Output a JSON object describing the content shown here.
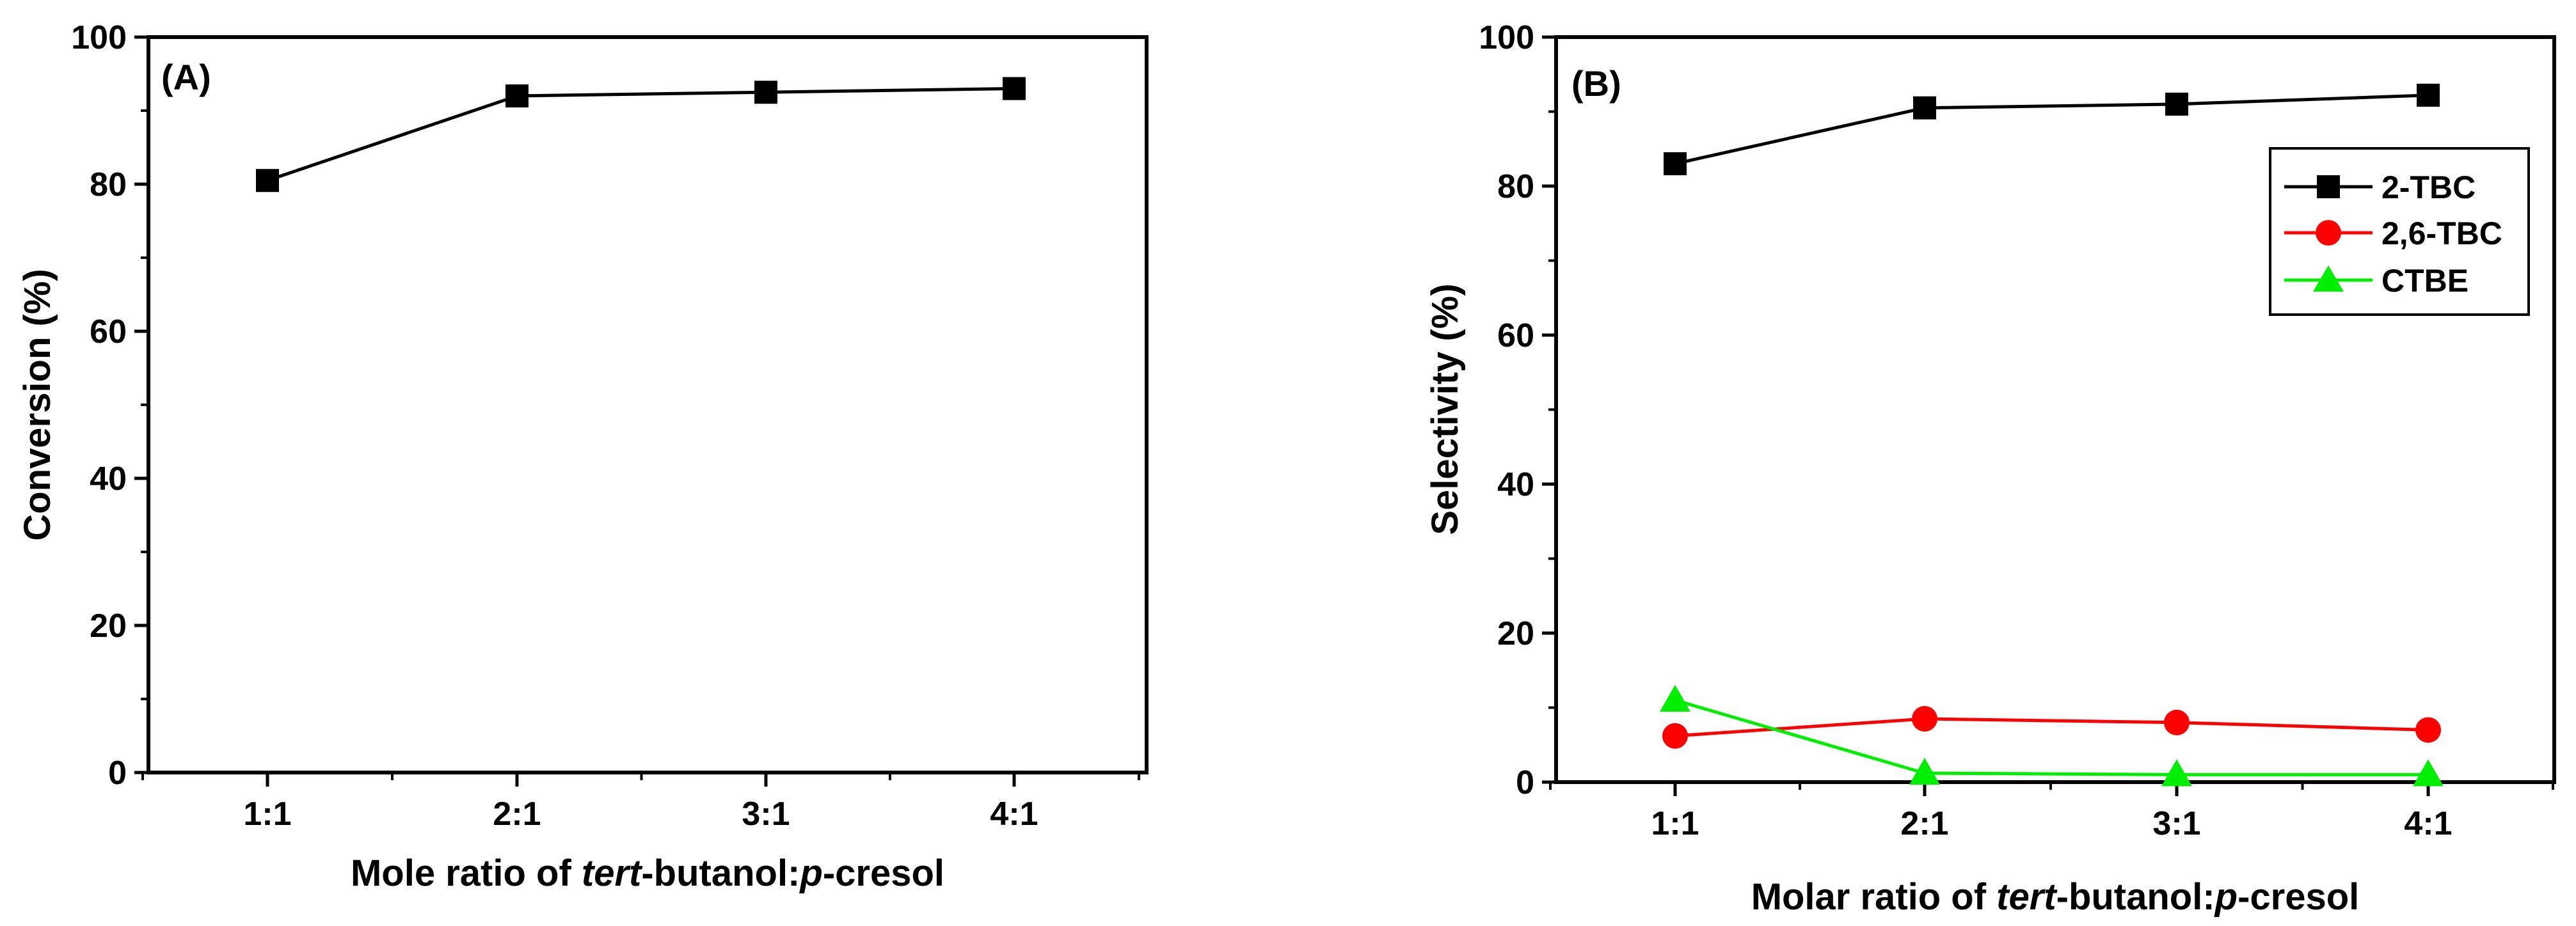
{
  "chart_data": [
    {
      "type": "line",
      "panel_label": "(A)",
      "categories": [
        "1:1",
        "2:1",
        "3:1",
        "4:1"
      ],
      "series": [
        {
          "name": "Conversion",
          "values": [
            80.5,
            92.0,
            92.5,
            93.0
          ],
          "color": "#000000",
          "marker": "square"
        }
      ],
      "xlabel": {
        "prefix": "Mole ratio of ",
        "italic1": "tert",
        "mid": "-butanol:",
        "italic2": "p",
        "suffix": "-cresol"
      },
      "ylabel": "Conversion (%)",
      "yticks": [
        "0",
        "20",
        "40",
        "60",
        "80",
        "100"
      ],
      "ylim": [
        0,
        100
      ],
      "legend": null
    },
    {
      "type": "line",
      "panel_label": "(B)",
      "categories": [
        "1:1",
        "2:1",
        "3:1",
        "4:1"
      ],
      "series": [
        {
          "name": "2-TBC",
          "values": [
            83.0,
            90.5,
            91.0,
            92.2
          ],
          "color": "#000000",
          "marker": "square"
        },
        {
          "name": "2,6-TBC",
          "values": [
            6.2,
            8.5,
            8.0,
            7.0
          ],
          "color": "#ff0000",
          "marker": "circle"
        },
        {
          "name": "CTBE",
          "values": [
            11.0,
            1.2,
            1.0,
            1.0
          ],
          "color": "#00ee00",
          "marker": "triangle"
        }
      ],
      "xlabel": {
        "prefix": "Molar ratio of ",
        "italic1": "tert",
        "mid": "-butanol:",
        "italic2": "p",
        "suffix": "-cresol"
      },
      "ylabel": "Selectivity (%)",
      "yticks": [
        "0",
        "20",
        "40",
        "60",
        "80",
        "100"
      ],
      "ylim": [
        0,
        100
      ],
      "legend": "top-right"
    }
  ]
}
